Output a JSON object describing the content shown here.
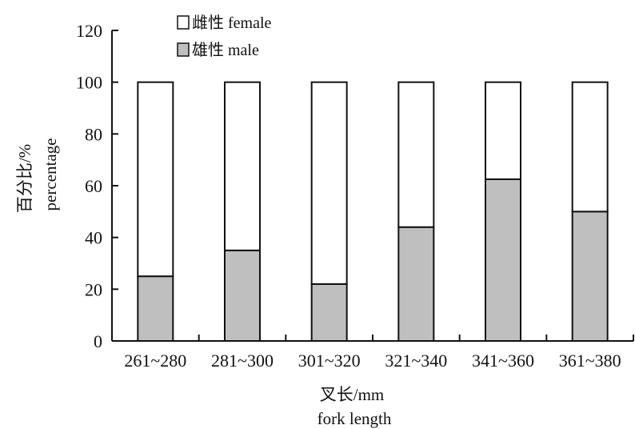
{
  "chart_data": {
    "type": "bar",
    "stacked": true,
    "categories": [
      "261~280",
      "281~300",
      "301~320",
      "321~340",
      "341~360",
      "361~380"
    ],
    "series": [
      {
        "name": "雄性 male",
        "values": [
          25,
          35,
          22,
          44,
          62.5,
          50
        ],
        "color": "#bfbfbf"
      },
      {
        "name": "雌性 female",
        "values": [
          75,
          65,
          78,
          56,
          37.5,
          50
        ],
        "color": "#ffffff"
      }
    ],
    "yticks": [
      0,
      20,
      40,
      60,
      80,
      100,
      120
    ],
    "ylim": [
      0,
      120
    ],
    "grid": false,
    "legend_position": "top-left",
    "xlabel_cn": "叉长/mm",
    "xlabel_en": "fork length",
    "ylabel_cn": "百分比/%",
    "ylabel_en": "percentage"
  }
}
